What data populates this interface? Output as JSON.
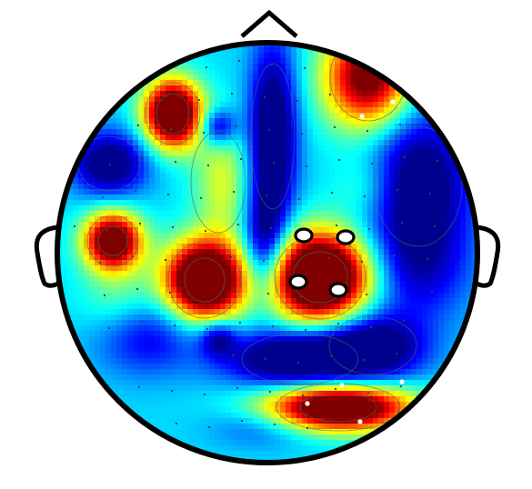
{
  "figure": {
    "type": "topographic-scalp-map",
    "colormap": "jet",
    "colors": {
      "outline": "#000000",
      "contour": "#4a6a5a",
      "electrode_fill": "#ffffff",
      "electrode_stroke": "#000000",
      "sensor_dot": "#334444",
      "background": "#ffffff"
    },
    "colormap_stops": [
      "#00008f",
      "#0000ff",
      "#0080ff",
      "#00ffff",
      "#80ff80",
      "#ffff00",
      "#ff8000",
      "#ff0000",
      "#800000"
    ],
    "highlighted_electrode_count": 4
  }
}
